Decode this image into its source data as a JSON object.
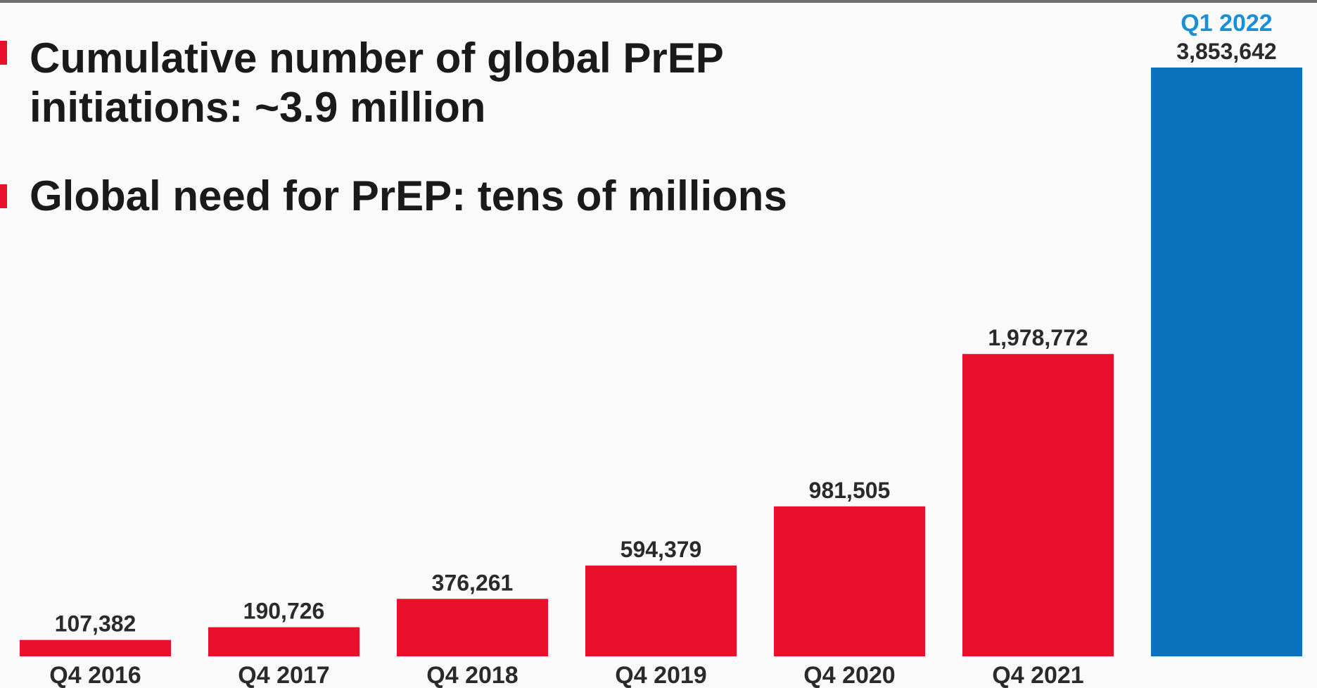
{
  "bullets": [
    {
      "lines": [
        "Cumulative number of global PrEP",
        "initiations: ~3.9 million"
      ]
    },
    {
      "lines": [
        "Global need for PrEP: tens of millions"
      ]
    }
  ],
  "colors": {
    "bar_primary": "#e8102a",
    "bar_highlight": "#0a72bd",
    "bullet": "#e8102a",
    "highlight_label": "#1b8fd6"
  },
  "chart_data": {
    "type": "bar",
    "categories": [
      "Q4 2016",
      "Q4 2017",
      "Q4 2018",
      "Q4 2019",
      "Q4 2020",
      "Q4 2021",
      "Q1 2022"
    ],
    "values": [
      107382,
      190726,
      376261,
      594379,
      981505,
      1978772,
      3853642
    ],
    "value_labels": [
      "107,382",
      "190,726",
      "376,261",
      "594,379",
      "981,505",
      "1,978,772",
      "3,853,642"
    ],
    "highlighted_category": "Q1 2022",
    "highlighted_label_position": "above value label",
    "title": "",
    "xlabel": "",
    "ylabel": "",
    "ylim": [
      0,
      3853642
    ],
    "grid": false,
    "legend": "none"
  }
}
